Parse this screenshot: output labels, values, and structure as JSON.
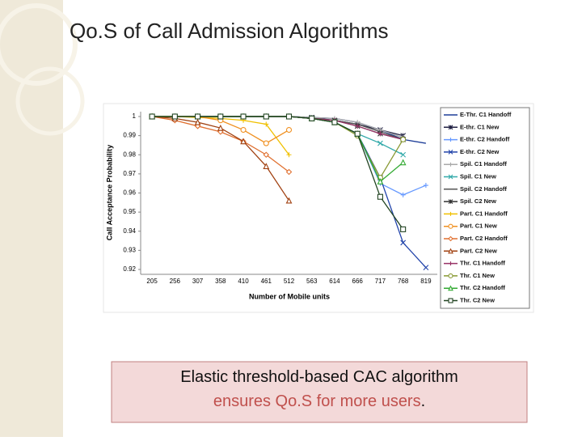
{
  "slide": {
    "title": "Qo.S of Call Admission Algorithms",
    "caption": [
      "Elastic threshold-based CAC algorithm",
      "ensures Qo.S for more users",
      "."
    ]
  },
  "chart_data": {
    "type": "line",
    "x_label": "Number of Mobile units",
    "y_label": "Call Acceptance Probability",
    "categories": [
      "205",
      "256",
      "307",
      "358",
      "410",
      "461",
      "512",
      "563",
      "614",
      "666",
      "717",
      "768",
      "819"
    ],
    "ylim": [
      0.92,
      1
    ],
    "yticks": [
      0.92,
      0.93,
      0.94,
      0.95,
      0.96,
      0.97,
      0.98,
      0.99,
      1
    ],
    "grid": false,
    "legend": "right",
    "series": [
      {
        "name": "E-Thr. C1 Handoff",
        "color": "#1f3f99",
        "marker": "none",
        "values": [
          1,
          1,
          1,
          1,
          1,
          1,
          1,
          0.9995,
          0.999,
          0.997,
          0.993,
          0.988,
          0.986
        ]
      },
      {
        "name": "E-thr. C1 New",
        "color": "#222244",
        "marker": "star",
        "values": [
          1,
          1,
          1,
          1,
          1,
          1,
          1,
          0.9995,
          0.998,
          0.996,
          0.993,
          0.99,
          null
        ]
      },
      {
        "name": "E-thr. C2 Handoff",
        "color": "#6699ff",
        "marker": "plus",
        "values": [
          1,
          1,
          1,
          1,
          1,
          1,
          1,
          0.999,
          0.997,
          0.991,
          0.965,
          0.959,
          0.964
        ]
      },
      {
        "name": "E-thr. C2 New",
        "color": "#2244aa",
        "marker": "x",
        "values": [
          1,
          1,
          1,
          1,
          1,
          1,
          1,
          0.999,
          0.997,
          0.991,
          0.968,
          0.934,
          0.921
        ]
      },
      {
        "name": "Spil. C1 Handoff",
        "color": "#aaaaaa",
        "marker": "plus",
        "values": [
          1,
          1,
          1,
          1,
          1,
          1,
          1,
          0.9995,
          0.999,
          0.997,
          0.993,
          0.989,
          null
        ]
      },
      {
        "name": "Spil. C1 New",
        "color": "#33aaaa",
        "marker": "x",
        "values": [
          1,
          1,
          1,
          1,
          1,
          1,
          1,
          0.999,
          0.997,
          0.991,
          0.986,
          0.98,
          null
        ]
      },
      {
        "name": "Spil. C2 Handoff",
        "color": "#555555",
        "marker": "none",
        "values": [
          1,
          1,
          1,
          1,
          1,
          1,
          1,
          0.999,
          0.998,
          0.996,
          0.992,
          0.988,
          null
        ]
      },
      {
        "name": "Spil. C2 New",
        "color": "#333333",
        "marker": "star",
        "values": [
          1,
          1,
          1,
          1,
          1,
          1,
          1,
          0.999,
          0.998,
          0.995,
          0.991,
          0.988,
          null
        ]
      },
      {
        "name": "Part. C1 Handoff",
        "color": "#f0c000",
        "marker": "plus",
        "values": [
          1,
          1,
          0.9995,
          0.999,
          0.998,
          0.996,
          0.98,
          null,
          null,
          null,
          null,
          null,
          null
        ]
      },
      {
        "name": "Part. C1 New",
        "color": "#f09020",
        "marker": "circle",
        "values": [
          1,
          1,
          1,
          0.998,
          0.993,
          0.986,
          0.993,
          null,
          null,
          null,
          null,
          null,
          null
        ]
      },
      {
        "name": "Part. C2 Handoff",
        "color": "#e07030",
        "marker": "diamond",
        "values": [
          1,
          0.998,
          0.995,
          0.992,
          0.987,
          0.98,
          0.971,
          null,
          null,
          null,
          null,
          null,
          null
        ]
      },
      {
        "name": "Part. C2 New",
        "color": "#a04010",
        "marker": "triangle",
        "values": [
          1,
          0.999,
          0.997,
          0.994,
          0.987,
          0.974,
          0.956,
          null,
          null,
          null,
          null,
          null,
          null
        ]
      },
      {
        "name": "Thr. C1 Handoff",
        "color": "#993366",
        "marker": "plus",
        "values": [
          1,
          1,
          1,
          1,
          1,
          1,
          1,
          0.999,
          0.998,
          0.995,
          0.991,
          0.988,
          null
        ]
      },
      {
        "name": "Thr. C1 New",
        "color": "#889933",
        "marker": "circle",
        "values": [
          1,
          1,
          1,
          1,
          1,
          1,
          1,
          0.999,
          0.997,
          0.99,
          0.968,
          0.988,
          null
        ]
      },
      {
        "name": "Thr. C2 Handoff",
        "color": "#33aa33",
        "marker": "triangle",
        "values": [
          1,
          1,
          1,
          1,
          1,
          1,
          1,
          0.999,
          0.997,
          0.991,
          0.966,
          0.976,
          null
        ]
      },
      {
        "name": "Thr. C2 New",
        "color": "#224422",
        "marker": "square",
        "values": [
          1,
          1,
          1,
          1,
          1,
          1,
          1,
          0.999,
          0.997,
          0.991,
          0.958,
          0.941,
          null
        ]
      }
    ]
  }
}
